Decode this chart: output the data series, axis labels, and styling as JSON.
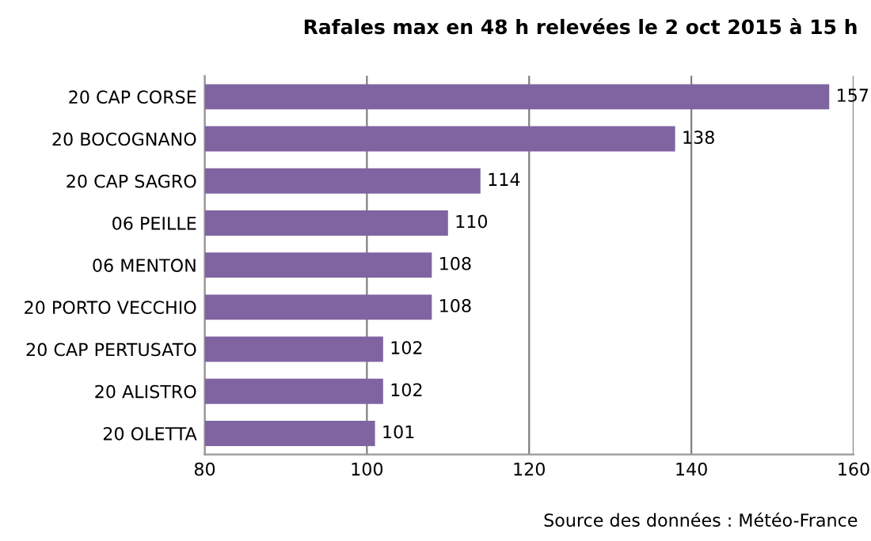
{
  "chart_data": {
    "type": "bar",
    "orientation": "horizontal",
    "title": "Rafales max en 48 h relevées le 2 oct 2015 à 15 h",
    "categories": [
      "20 CAP CORSE",
      "20 BOCOGNANO",
      "20 CAP SAGRO",
      "06 PEILLE",
      "06 MENTON",
      "20 PORTO VECCHIO",
      "20 CAP PERTUSATO",
      "20 ALISTRO",
      "20 OLETTA"
    ],
    "values": [
      157,
      138,
      114,
      110,
      108,
      108,
      102,
      102,
      101
    ],
    "color": "#8064a2",
    "xlim": [
      80,
      160
    ],
    "xticks": [
      80,
      100,
      120,
      140,
      160
    ],
    "grid": "x",
    "data_labels": true,
    "annotations": [
      "Source des données : Météo-France"
    ]
  }
}
